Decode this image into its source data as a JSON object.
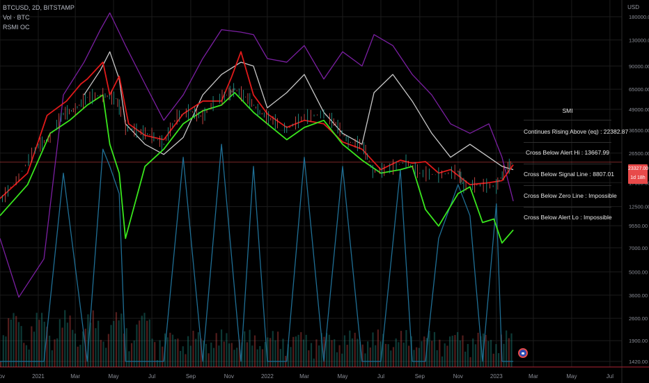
{
  "header": {
    "symbol_line": "BTCUSD, 2D, BITSTAMP",
    "indicator_vol": "Vol · BTC",
    "indicator_rsmi": "RSMI OC"
  },
  "axis": {
    "y_title": "USD",
    "y_ticks": [
      "180000.00",
      "130000.00",
      "90000.00",
      "65000.00",
      "49000.00",
      "36500.00",
      "26500.00",
      "23327.00",
      "17500.00",
      "12500.00",
      "9550.00",
      "7000.00",
      "5000.00",
      "3600.00",
      "2600.00",
      "1900.00",
      "1420.00"
    ],
    "x_ticks": [
      "Nov",
      "2021",
      "Mar",
      "May",
      "Jul",
      "Sep",
      "Nov",
      "2022",
      "Mar",
      "May",
      "Jul",
      "Sep",
      "Nov",
      "2023",
      "Mar",
      "May",
      "Jul"
    ]
  },
  "price_badge": {
    "price": "23327.00",
    "countdown": "1d 18h"
  },
  "info_table": {
    "title": "SMI",
    "rows": [
      "Continues Rising Above (eq) : 22382.87",
      "Cross Below Alert Hi : 13667.99",
      "Cross Below Signal Line : 8807.01",
      "Cross Below Zero Line : Impossible",
      "Cross Below Alert Lo : Impossible"
    ]
  },
  "colors": {
    "background": "#000000",
    "grid": "#1c1c1c",
    "candle_up": "#26a69a",
    "candle_down": "#ef5350",
    "price_line": "#e84a4a",
    "purple": "#7b1fa2",
    "white": "#c8c8c8",
    "red": "#e01a1a",
    "green": "#39e61d",
    "blue": "#1f6f95"
  },
  "chart_data": {
    "type": "line",
    "title": "BTCUSD, 2D, BITSTAMP",
    "scale": "log",
    "xlim": [
      "2020-11-01",
      "2023-07-20"
    ],
    "ylim": [
      1420,
      180000
    ],
    "grid": true,
    "current_price": 23327,
    "candles_close": {
      "x": [
        "2020-11-05",
        "2020-12-01",
        "2021-01-01",
        "2021-01-20",
        "2021-02-10",
        "2021-03-01",
        "2021-03-20",
        "2021-04-14",
        "2021-05-05",
        "2021-05-20",
        "2021-06-10",
        "2021-07-01",
        "2021-07-20",
        "2021-08-10",
        "2021-09-01",
        "2021-09-20",
        "2021-10-10",
        "2021-11-01",
        "2021-11-10",
        "2021-12-01",
        "2021-12-20",
        "2022-01-10",
        "2022-02-01",
        "2022-03-01",
        "2022-04-01",
        "2022-04-20",
        "2022-05-10",
        "2022-06-01",
        "2022-06-18",
        "2022-07-10",
        "2022-08-10",
        "2022-09-01",
        "2022-10-01",
        "2022-11-01",
        "2022-11-10",
        "2022-12-01",
        "2023-01-01",
        "2023-01-15",
        "2023-01-28"
      ],
      "y": [
        14000,
        18800,
        29300,
        33000,
        46000,
        49000,
        58000,
        60000,
        57000,
        38000,
        36000,
        34000,
        30000,
        44000,
        48000,
        44000,
        55000,
        61000,
        65000,
        57000,
        47000,
        42000,
        37000,
        44000,
        46000,
        40000,
        31000,
        30000,
        20500,
        21000,
        23500,
        20000,
        19500,
        20500,
        16800,
        17000,
        16600,
        20800,
        23300
      ]
    },
    "series": [
      {
        "name": "",
        "color": "purple",
        "x": [
          "2020-11-01",
          "2020-12-01",
          "2021-01-10",
          "2021-02-10",
          "2021-03-15",
          "2021-04-10",
          "2021-04-25",
          "2021-05-20",
          "2021-06-20",
          "2021-07-20",
          "2021-08-20",
          "2021-09-20",
          "2021-10-20",
          "2021-11-20",
          "2021-12-10",
          "2022-01-01",
          "2022-02-01",
          "2022-03-01",
          "2022-04-01",
          "2022-05-01",
          "2022-06-01",
          "2022-06-20",
          "2022-07-20",
          "2022-08-20",
          "2022-09-20",
          "2022-10-20",
          "2022-11-20",
          "2022-12-20",
          "2023-01-10",
          "2023-01-28"
        ],
        "y": [
          8000,
          3500,
          6000,
          60000,
          95000,
          150000,
          190000,
          120000,
          70000,
          42000,
          60000,
          100000,
          150000,
          145000,
          140000,
          100000,
          95000,
          120000,
          75000,
          110000,
          90000,
          140000,
          120000,
          80000,
          60000,
          40000,
          35000,
          40000,
          25000,
          13500
        ]
      },
      {
        "name": "",
        "color": "white",
        "x": [
          "2021-03-15",
          "2021-04-10",
          "2021-04-25",
          "2021-05-10",
          "2021-05-20",
          "2021-06-20",
          "2021-07-20",
          "2021-08-20",
          "2021-09-20",
          "2021-10-20",
          "2021-11-20",
          "2021-12-10",
          "2022-01-01",
          "2022-02-01",
          "2022-03-01",
          "2022-04-01",
          "2022-05-01",
          "2022-06-01",
          "2022-06-20",
          "2022-07-20",
          "2022-08-20",
          "2022-09-20",
          "2022-10-20",
          "2022-11-20",
          "2022-12-20",
          "2023-01-10",
          "2023-01-28"
        ],
        "y": [
          60000,
          85000,
          110000,
          75000,
          40000,
          30000,
          26000,
          33000,
          60000,
          80000,
          95000,
          90000,
          50000,
          62000,
          80000,
          47000,
          35000,
          30000,
          62000,
          80000,
          55000,
          35000,
          25000,
          30000,
          25000,
          22000,
          21000
        ]
      },
      {
        "name": "",
        "color": "red",
        "x": [
          "2020-11-01",
          "2020-12-15",
          "2021-01-15",
          "2021-02-15",
          "2021-03-10",
          "2021-03-20",
          "2021-04-14",
          "2021-04-25",
          "2021-05-10",
          "2021-05-25",
          "2021-06-20",
          "2021-07-20",
          "2021-08-20",
          "2021-09-20",
          "2021-10-20",
          "2021-11-05",
          "2021-11-20",
          "2021-12-10",
          "2022-01-01",
          "2022-02-01",
          "2022-03-01",
          "2022-04-01",
          "2022-05-01",
          "2022-06-01",
          "2022-07-01",
          "2022-08-01",
          "2022-08-20",
          "2022-09-10",
          "2022-10-01",
          "2022-10-20",
          "2022-11-20",
          "2022-12-20",
          "2023-01-10",
          "2023-01-28"
        ],
        "y": [
          14000,
          20000,
          45000,
          55000,
          70000,
          75000,
          95000,
          60000,
          78000,
          40000,
          34000,
          32000,
          46000,
          55000,
          55000,
          77000,
          110000,
          60000,
          46000,
          38000,
          42000,
          40000,
          31000,
          28000,
          21000,
          24000,
          23000,
          23500,
          20000,
          21000,
          17000,
          17500,
          18000,
          22500
        ]
      },
      {
        "name": "",
        "color": "green",
        "x": [
          "2020-11-01",
          "2020-12-15",
          "2021-01-20",
          "2021-02-20",
          "2021-03-20",
          "2021-04-14",
          "2021-04-25",
          "2021-05-10",
          "2021-05-20",
          "2021-06-20",
          "2021-07-20",
          "2021-08-20",
          "2021-09-20",
          "2021-10-20",
          "2021-11-10",
          "2021-12-10",
          "2022-01-01",
          "2022-02-01",
          "2022-03-01",
          "2022-04-01",
          "2022-05-01",
          "2022-06-01",
          "2022-07-01",
          "2022-08-01",
          "2022-08-20",
          "2022-09-10",
          "2022-10-01",
          "2022-11-01",
          "2022-11-20",
          "2022-12-10",
          "2022-12-28",
          "2023-01-10",
          "2023-01-28"
        ],
        "y": [
          11000,
          17000,
          35000,
          42000,
          52000,
          60000,
          30000,
          20000,
          8000,
          22000,
          28000,
          40000,
          48000,
          52000,
          62000,
          47000,
          40000,
          32000,
          38000,
          42000,
          30000,
          24000,
          20000,
          21000,
          22000,
          12000,
          9500,
          15000,
          16500,
          10000,
          10500,
          7500,
          9000
        ]
      },
      {
        "name": "",
        "color": "blue",
        "x": [
          "2020-11-01",
          "2021-01-10",
          "2021-02-10",
          "2021-03-20",
          "2021-04-14",
          "2021-04-25",
          "2021-05-10",
          "2021-05-20",
          "2021-06-20",
          "2021-07-20",
          "2021-08-20",
          "2021-09-20",
          "2021-10-20",
          "2021-11-20",
          "2021-12-10",
          "2022-01-01",
          "2022-02-01",
          "2022-03-01",
          "2022-04-01",
          "2022-05-01",
          "2022-06-01",
          "2022-07-01",
          "2022-08-01",
          "2022-08-20",
          "2022-09-10",
          "2022-10-01",
          "2022-11-01",
          "2022-11-20",
          "2022-12-10",
          "2023-01-01",
          "2023-01-10",
          "2023-01-28"
        ],
        "y": [
          1420,
          1420,
          20000,
          1420,
          28000,
          22000,
          15000,
          1420,
          1420,
          1420,
          25000,
          1420,
          30000,
          1420,
          22000,
          1420,
          1420,
          25000,
          1420,
          22000,
          1420,
          1420,
          21000,
          1420,
          1420,
          8000,
          17000,
          11000,
          1420,
          13000,
          1420,
          1420
        ]
      }
    ],
    "volume": {
      "x_start": "2020-11-01",
      "x_end": "2023-01-28",
      "count": 200,
      "max_price_units": 5000
    }
  }
}
